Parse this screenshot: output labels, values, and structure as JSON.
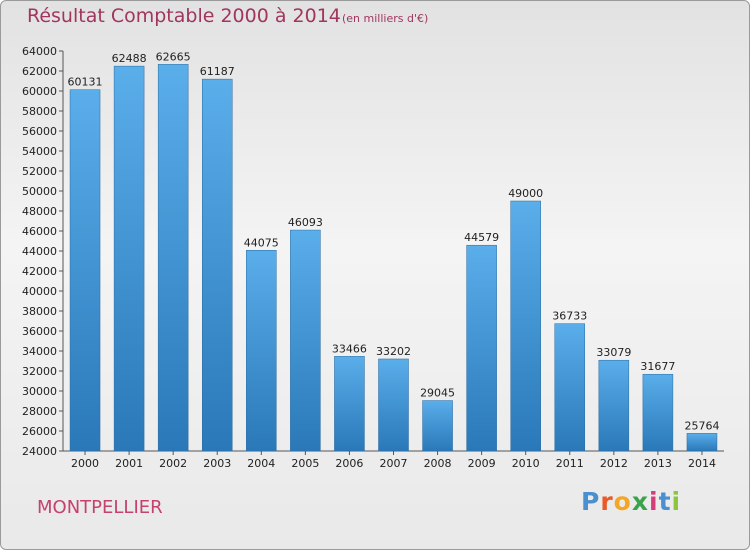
{
  "title": "Résultat Comptable 2000 à 2014",
  "subtitle": "(en milliers d'€)",
  "city": "MONTPELLIER",
  "logo": {
    "letters": [
      "P",
      "r",
      "o",
      "x",
      "i",
      "t",
      "i"
    ],
    "colors": [
      "#4a8fd0",
      "#e85a2a",
      "#f5a623",
      "#3aa34a",
      "#d43c7a",
      "#4a8fd0",
      "#8cc63f"
    ]
  },
  "colors": {
    "bar_top": "#5aaeea",
    "bar_bottom": "#2a78b8",
    "title": "#a0365e",
    "city": "#c3426e"
  },
  "chart_data": {
    "type": "bar",
    "title": "Résultat Comptable 2000 à 2014",
    "subtitle": "(en milliers d'€)",
    "categories": [
      "2000",
      "2001",
      "2002",
      "2003",
      "2004",
      "2005",
      "2006",
      "2007",
      "2008",
      "2009",
      "2010",
      "2011",
      "2012",
      "2013",
      "2014"
    ],
    "values": [
      60131,
      62488,
      62665,
      61187,
      44075,
      46093,
      33466,
      33202,
      29045,
      44579,
      49000,
      36733,
      33079,
      31677,
      25764
    ],
    "ylim": [
      24000,
      64000
    ],
    "ytick_step": 2000,
    "grid": false,
    "legend": "none"
  }
}
